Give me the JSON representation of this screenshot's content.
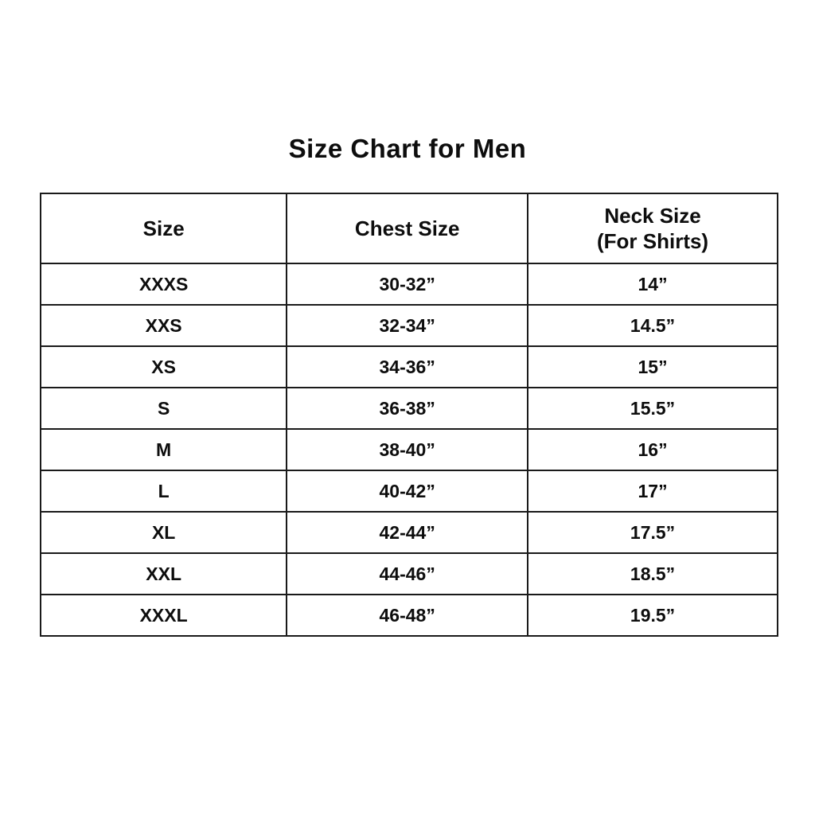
{
  "page": {
    "title": "Size Chart for Men",
    "background_color": "#ffffff",
    "text_color": "#0d0d0d",
    "border_color": "#1a1a1a"
  },
  "chart_data": {
    "type": "table",
    "title": "Size Chart for Men",
    "columns": {
      "size_header": "Size",
      "chest_header": "Chest Size",
      "neck_header_line1": "Neck Size",
      "neck_header_line2": "(For Shirts)"
    },
    "rows": [
      {
        "size": "XXXS",
        "chest": "30-32”",
        "neck": "14”"
      },
      {
        "size": "XXS",
        "chest": "32-34”",
        "neck": "14.5”"
      },
      {
        "size": "XS",
        "chest": "34-36”",
        "neck": "15”"
      },
      {
        "size": "S",
        "chest": "36-38”",
        "neck": "15.5”"
      },
      {
        "size": "M",
        "chest": "38-40”",
        "neck": "16”"
      },
      {
        "size": "L",
        "chest": "40-42”",
        "neck": "17”"
      },
      {
        "size": "XL",
        "chest": "42-44”",
        "neck": "17.5”"
      },
      {
        "size": "XXL",
        "chest": "44-46”",
        "neck": "18.5”"
      },
      {
        "size": "XXXL",
        "chest": "46-48”",
        "neck": "19.5”"
      }
    ]
  }
}
